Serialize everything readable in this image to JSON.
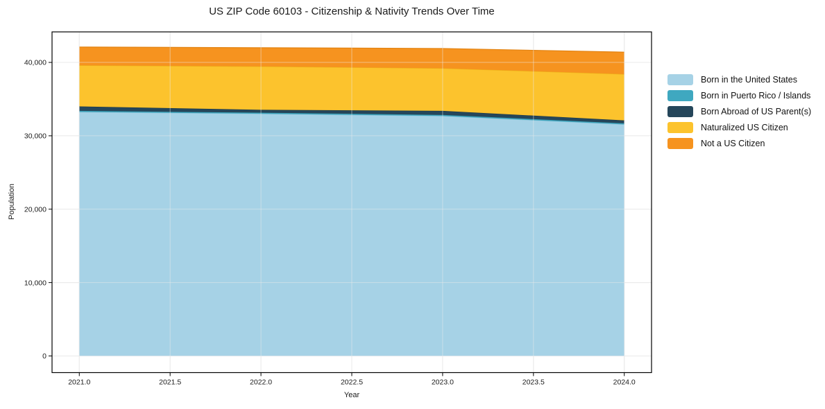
{
  "chart_data": {
    "type": "area",
    "stacked": true,
    "title": "US ZIP Code 60103 - Citizenship & Nativity Trends Over Time",
    "xlabel": "Year",
    "ylabel": "Population",
    "x": [
      2021,
      2022,
      2023,
      2024
    ],
    "series": [
      {
        "name": "Born in the United States",
        "color": "#a6d2e6",
        "edge": "#8fc3da",
        "values": [
          33250,
          33000,
          32700,
          31550
        ]
      },
      {
        "name": "Born in Puerto Rico / Islands",
        "color": "#3fa8c0",
        "edge": "#3797ad",
        "values": [
          150,
          150,
          150,
          150
        ]
      },
      {
        "name": "Born Abroad of US Parent(s)",
        "color": "#25465a",
        "edge": "#1e3a4b",
        "values": [
          600,
          400,
          550,
          400
        ]
      },
      {
        "name": "Naturalized US Citizen",
        "color": "#fcc32d",
        "edge": "#edb117",
        "values": [
          5600,
          5900,
          5800,
          6300
        ]
      },
      {
        "name": "Not a US Citizen",
        "color": "#f6931f",
        "edge": "#e28210",
        "values": [
          2500,
          2550,
          2700,
          3000
        ]
      }
    ],
    "stack_totals": [
      42100,
      42000,
      41900,
      41400
    ],
    "xlim": [
      2020.85,
      2024.15
    ],
    "ylim": [
      -2270,
      44160
    ],
    "xticks": {
      "values": [
        2021.0,
        2021.5,
        2022.0,
        2022.5,
        2023.0,
        2023.5,
        2024.0
      ],
      "labels": [
        "2021.0",
        "2021.5",
        "2022.0",
        "2022.5",
        "2023.0",
        "2023.5",
        "2024.0"
      ]
    },
    "yticks": {
      "values": [
        0,
        10000,
        20000,
        30000,
        40000
      ],
      "labels": [
        "0",
        "10,000",
        "20,000",
        "30,000",
        "40,000"
      ]
    },
    "grid": true,
    "legend_position": "right-outside"
  },
  "colors": {
    "background": "#ffffff",
    "grid": "#e8e8e8",
    "grid_overlay": "rgba(235,235,235,0.5)",
    "spine": "#000000",
    "tick": "#000000",
    "text": "#1a1a1a"
  }
}
